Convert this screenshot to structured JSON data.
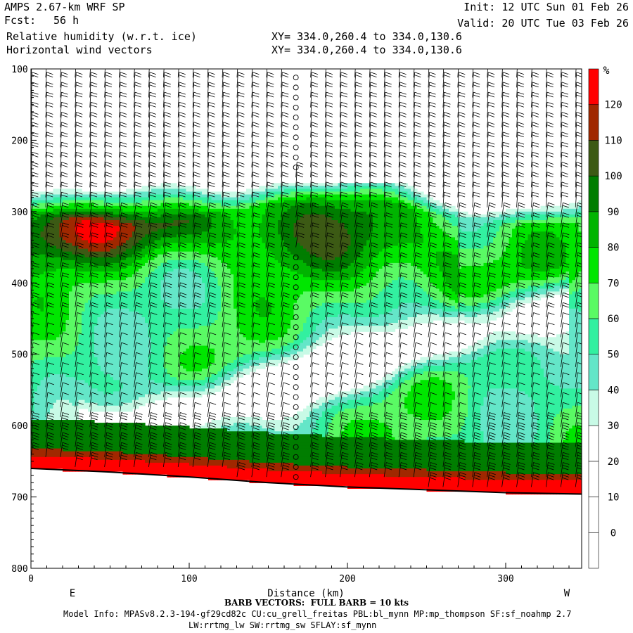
{
  "header": {
    "model": "AMPS 2.67-km WRF SP",
    "fcst_label": "Fcst:",
    "fcst_value": "56 h",
    "field1": "Relative humidity (w.r.t. ice)",
    "field2": "Horizontal wind vectors",
    "init": "Init: 12 UTC Sun 01 Feb 26",
    "valid": "Valid: 20 UTC Tue 03 Feb 26",
    "xy1": "XY= 334.0,260.4 to 334.0,130.6",
    "xy2": "XY= 334.0,260.4 to 334.0,130.6"
  },
  "footer": {
    "barb_note": "BARB VECTORS:  FULL BARB = 10 kts",
    "model_info_1": "Model Info: MPASv8.2.3-194-gf29cd82c CU:cu_grell_freitas PBL:bl_mynn MP:mp_thompson SF:sf_noahmp 2.7",
    "model_info_2": "LW:rrtmg_lw SW:rrtmg_sw SFLAY:sf_mynn"
  },
  "chart_data": {
    "type": "heatmap",
    "title": "Relative humidity (w.r.t. ice)",
    "xlabel": "Distance (km)",
    "ylabel": "",
    "x_range": [
      0,
      348
    ],
    "y_range": [
      100,
      800
    ],
    "y_reversed": true,
    "x_ticks": [
      0,
      100,
      200,
      300
    ],
    "y_ticks": [
      100,
      200,
      300,
      400,
      500,
      600,
      700,
      800
    ],
    "x_end_labels": {
      "left": "E",
      "right": "W"
    },
    "colorbar": {
      "unit": "%",
      "levels": [
        0,
        10,
        20,
        30,
        40,
        50,
        60,
        70,
        80,
        90,
        100,
        110,
        120
      ],
      "colors": [
        "#ffffff",
        "#ffffff",
        "#ffffff",
        "#ffffff",
        "#c8fae6",
        "#64e6c8",
        "#32f0a0",
        "#5afa64",
        "#00e600",
        "#00b400",
        "#007d00",
        "#3c5a14",
        "#a02800",
        "#ff0000"
      ]
    },
    "terrain": [
      [
        0,
        660
      ],
      [
        50,
        665
      ],
      [
        100,
        672
      ],
      [
        150,
        680
      ],
      [
        200,
        686
      ],
      [
        250,
        690
      ],
      [
        300,
        694
      ],
      [
        348,
        696
      ]
    ],
    "rh_pattern": [
      {
        "band": "upper moist layer",
        "pressure_top_hpa": 265,
        "max_rh_pct": 115
      },
      {
        "band": "mid-level moist tongue",
        "pressure_top_hpa": 330,
        "max_rh_pct": 100
      },
      {
        "band": "dry slot",
        "pressure_top_hpa": 450,
        "min_rh_pct": 25
      },
      {
        "band": "near-surface saturated layer",
        "pressure_top_hpa": 660,
        "max_rh_pct": 125
      }
    ]
  }
}
